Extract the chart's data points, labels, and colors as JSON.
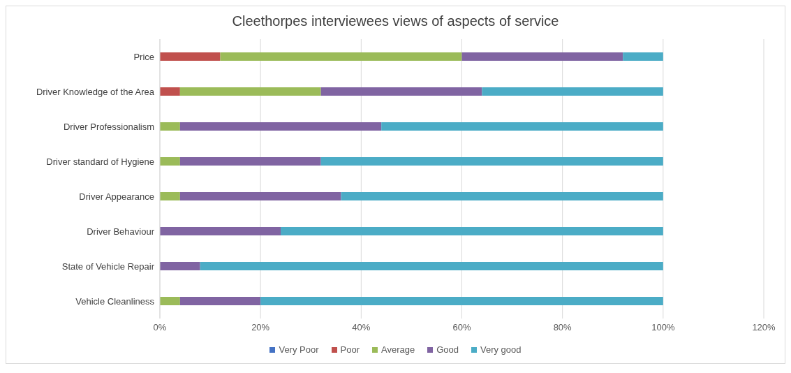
{
  "chart_data": {
    "type": "bar",
    "orientation": "horizontal",
    "stacked": true,
    "title": "Cleethorpes interviewees views of aspects of service",
    "categories": [
      "Price",
      "Driver Knowledge of the Area",
      "Driver Professionalism",
      "Driver standard of Hygiene",
      "Driver Appearance",
      "Driver Behaviour",
      "State of Vehicle Repair",
      "Vehicle Cleanliness"
    ],
    "series": [
      {
        "name": "Very Poor",
        "color": "#4472c4",
        "values": [
          0,
          0,
          0,
          0,
          0,
          0,
          0,
          0
        ]
      },
      {
        "name": "Poor",
        "color": "#c0504d",
        "values": [
          12,
          4,
          0,
          0,
          0,
          0,
          0,
          0
        ]
      },
      {
        "name": "Average",
        "color": "#9bbb59",
        "values": [
          48,
          28,
          4,
          4,
          4,
          0,
          0,
          4
        ]
      },
      {
        "name": "Good",
        "color": "#8064a2",
        "values": [
          32,
          32,
          40,
          28,
          32,
          24,
          8,
          16
        ]
      },
      {
        "name": "Very good",
        "color": "#4bacc6",
        "values": [
          8,
          36,
          56,
          68,
          64,
          76,
          92,
          80
        ]
      }
    ],
    "xlim": [
      0,
      120
    ],
    "xticks": [
      {
        "value": 0,
        "label": "0%"
      },
      {
        "value": 20,
        "label": "20%"
      },
      {
        "value": 40,
        "label": "40%"
      },
      {
        "value": 60,
        "label": "60%"
      },
      {
        "value": 80,
        "label": "80%"
      },
      {
        "value": 100,
        "label": "100%"
      },
      {
        "value": 120,
        "label": "120%"
      }
    ],
    "grid": "x",
    "legend": "bottom"
  }
}
